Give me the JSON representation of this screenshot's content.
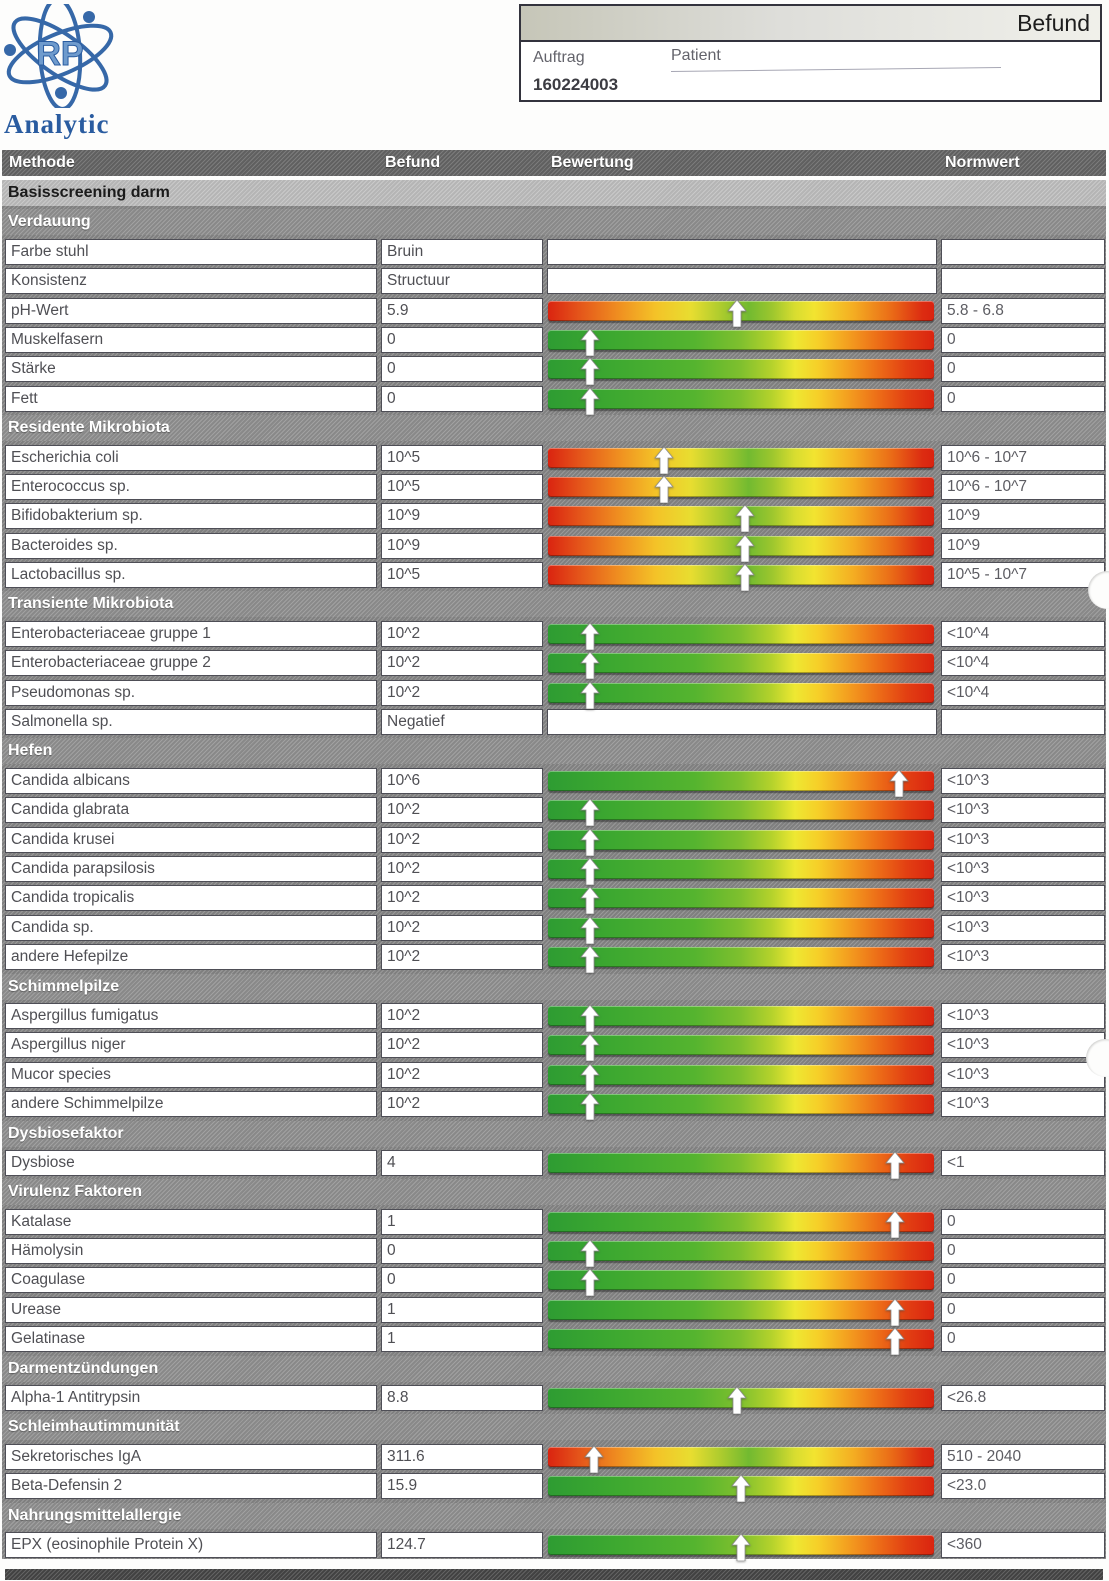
{
  "logo": {
    "brand": "Analytic",
    "monogram": "RP"
  },
  "header_box": {
    "title": "Befund",
    "auftrag_label": "Auftrag",
    "patient_label": "Patient",
    "auftrag_value": "160224003"
  },
  "table": {
    "columns": [
      "Methode",
      "Befund",
      "Bewertung",
      "Normwert"
    ],
    "title_band": "Basisscreening darm",
    "sections": [
      {
        "title": "Verdauung",
        "rows": [
          {
            "method": "Farbe stuhl",
            "value": "Bruin",
            "bar": null,
            "norm": ""
          },
          {
            "method": "Konsistenz",
            "value": "Structuur",
            "bar": null,
            "norm": ""
          },
          {
            "method": "pH-Wert",
            "value": "5.9",
            "bar": {
              "type": "center",
              "arrow": 49
            },
            "norm": "5.8 - 6.8"
          },
          {
            "method": "Muskelfasern",
            "value": "0",
            "bar": {
              "type": "rise",
              "arrow": 11
            },
            "norm": "0"
          },
          {
            "method": "Stärke",
            "value": "0",
            "bar": {
              "type": "rise",
              "arrow": 11
            },
            "norm": "0"
          },
          {
            "method": "Fett",
            "value": "0",
            "bar": {
              "type": "rise",
              "arrow": 11
            },
            "norm": "0"
          }
        ]
      },
      {
        "title": "Residente Mikrobiota",
        "rows": [
          {
            "method": "Escherichia coli",
            "value": "10^5",
            "bar": {
              "type": "center",
              "arrow": 30
            },
            "norm": "10^6 - 10^7"
          },
          {
            "method": "Enterococcus sp.",
            "value": "10^5",
            "bar": {
              "type": "center",
              "arrow": 30
            },
            "norm": "10^6 - 10^7"
          },
          {
            "method": "Bifidobakterium sp.",
            "value": "10^9",
            "bar": {
              "type": "center",
              "arrow": 51
            },
            "norm": "10^9"
          },
          {
            "method": "Bacteroides sp.",
            "value": "10^9",
            "bar": {
              "type": "center",
              "arrow": 51
            },
            "norm": "10^9"
          },
          {
            "method": "Lactobacillus sp.",
            "value": "10^5",
            "bar": {
              "type": "center",
              "arrow": 51
            },
            "norm": "10^5 - 10^7"
          }
        ]
      },
      {
        "title": "Transiente Mikrobiota",
        "rows": [
          {
            "method": "Enterobacteriaceae gruppe 1",
            "value": "10^2",
            "bar": {
              "type": "rise",
              "arrow": 11
            },
            "norm": "<10^4"
          },
          {
            "method": "Enterobacteriaceae gruppe 2",
            "value": "10^2",
            "bar": {
              "type": "rise",
              "arrow": 11
            },
            "norm": "<10^4"
          },
          {
            "method": "Pseudomonas sp.",
            "value": "10^2",
            "bar": {
              "type": "rise",
              "arrow": 11
            },
            "norm": "<10^4"
          },
          {
            "method": "Salmonella sp.",
            "value": "Negatief",
            "bar": null,
            "norm": ""
          }
        ]
      },
      {
        "title": "Hefen",
        "rows": [
          {
            "method": "Candida albicans",
            "value": "10^6",
            "bar": {
              "type": "rise",
              "arrow": 91
            },
            "norm": "<10^3"
          },
          {
            "method": "Candida glabrata",
            "value": "10^2",
            "bar": {
              "type": "rise",
              "arrow": 11
            },
            "norm": "<10^3"
          },
          {
            "method": "Candida krusei",
            "value": "10^2",
            "bar": {
              "type": "rise",
              "arrow": 11
            },
            "norm": "<10^3"
          },
          {
            "method": "Candida parapsilosis",
            "value": "10^2",
            "bar": {
              "type": "rise",
              "arrow": 11
            },
            "norm": "<10^3"
          },
          {
            "method": "Candida tropicalis",
            "value": "10^2",
            "bar": {
              "type": "rise",
              "arrow": 11
            },
            "norm": "<10^3"
          },
          {
            "method": "Candida sp.",
            "value": "10^2",
            "bar": {
              "type": "rise",
              "arrow": 11
            },
            "norm": "<10^3"
          },
          {
            "method": "andere Hefepilze",
            "value": "10^2",
            "bar": {
              "type": "rise",
              "arrow": 11
            },
            "norm": "<10^3"
          }
        ]
      },
      {
        "title": "Schimmelpilze",
        "rows": [
          {
            "method": "Aspergillus fumigatus",
            "value": "10^2",
            "bar": {
              "type": "rise",
              "arrow": 11
            },
            "norm": "<10^3"
          },
          {
            "method": "Aspergillus niger",
            "value": "10^2",
            "bar": {
              "type": "rise",
              "arrow": 11
            },
            "norm": "<10^3"
          },
          {
            "method": "Mucor species",
            "value": "10^2",
            "bar": {
              "type": "rise",
              "arrow": 11
            },
            "norm": "<10^3"
          },
          {
            "method": "andere Schimmelpilze",
            "value": "10^2",
            "bar": {
              "type": "rise",
              "arrow": 11
            },
            "norm": "<10^3"
          }
        ]
      },
      {
        "title": "Dysbiosefaktor",
        "rows": [
          {
            "method": "Dysbiose",
            "value": "4",
            "bar": {
              "type": "rise",
              "arrow": 90
            },
            "norm": "<1"
          }
        ]
      },
      {
        "title": "Virulenz Faktoren",
        "rows": [
          {
            "method": "Katalase",
            "value": "1",
            "bar": {
              "type": "rise",
              "arrow": 90
            },
            "norm": "0"
          },
          {
            "method": "Hämolysin",
            "value": "0",
            "bar": {
              "type": "rise",
              "arrow": 11
            },
            "norm": "0"
          },
          {
            "method": "Coagulase",
            "value": "0",
            "bar": {
              "type": "rise",
              "arrow": 11
            },
            "norm": "0"
          },
          {
            "method": "Urease",
            "value": "1",
            "bar": {
              "type": "rise",
              "arrow": 90
            },
            "norm": "0"
          },
          {
            "method": "Gelatinase",
            "value": "1",
            "bar": {
              "type": "rise",
              "arrow": 90
            },
            "norm": "0"
          }
        ]
      },
      {
        "title": "Darmentzündungen",
        "rows": [
          {
            "method": "Alpha-1 Antitrypsin",
            "value": "8.8",
            "bar": {
              "type": "rise",
              "arrow": 49
            },
            "norm": "<26.8"
          }
        ]
      },
      {
        "title": "Schleimhautimmunität",
        "rows": [
          {
            "method": "Sekretorisches IgA",
            "value": "311.6",
            "bar": {
              "type": "center",
              "arrow": 12
            },
            "norm": "510 - 2040"
          },
          {
            "method": "Beta-Defensin 2",
            "value": "15.9",
            "bar": {
              "type": "rise",
              "arrow": 50
            },
            "norm": "<23.0"
          }
        ]
      },
      {
        "title": "Nahrungsmittelallergie",
        "rows": [
          {
            "method": "EPX (eosinophile Protein X)",
            "value": "124.7",
            "bar": {
              "type": "rise",
              "arrow": 50
            },
            "norm": "<360"
          }
        ]
      }
    ]
  },
  "colors": {
    "logo_blue": "#2a5ca0",
    "bar_green": "#2e9c32",
    "bar_yellow": "#f2e833",
    "bar_red": "#da2410",
    "header_gray": "#6d6d6d",
    "section_gray": "#989898",
    "title_band_gray": "#c3c3c3"
  }
}
